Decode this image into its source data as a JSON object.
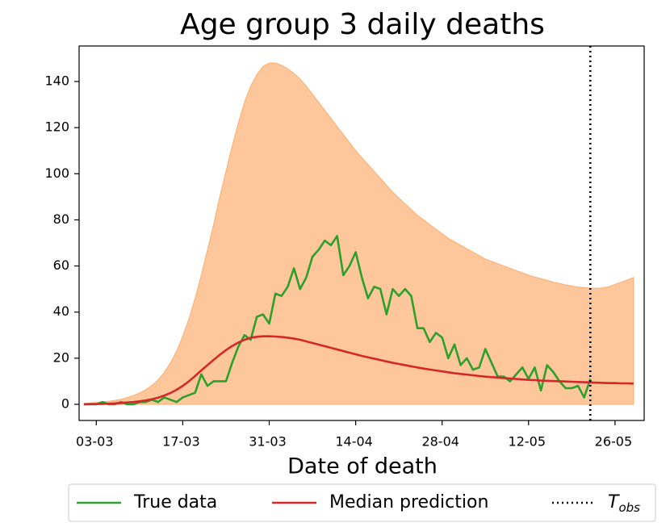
{
  "chart_data": {
    "type": "band-line",
    "title": "Age group 3 daily deaths",
    "xlabel": "Date of death",
    "x": [
      "01-03",
      "02-03",
      "03-03",
      "04-03",
      "05-03",
      "06-03",
      "07-03",
      "08-03",
      "09-03",
      "10-03",
      "11-03",
      "12-03",
      "13-03",
      "14-03",
      "15-03",
      "16-03",
      "17-03",
      "18-03",
      "19-03",
      "20-03",
      "21-03",
      "22-03",
      "23-03",
      "24-03",
      "25-03",
      "26-03",
      "27-03",
      "28-03",
      "29-03",
      "30-03",
      "31-03",
      "01-04",
      "02-04",
      "03-04",
      "04-04",
      "05-04",
      "06-04",
      "07-04",
      "08-04",
      "09-04",
      "10-04",
      "11-04",
      "12-04",
      "13-04",
      "14-04",
      "15-04",
      "16-04",
      "17-04",
      "18-04",
      "19-04",
      "20-04",
      "21-04",
      "22-04",
      "23-04",
      "24-04",
      "25-04",
      "26-04",
      "27-04",
      "28-04",
      "29-04",
      "30-04",
      "01-05",
      "02-05",
      "03-05",
      "04-05",
      "05-05",
      "06-05",
      "07-05",
      "08-05",
      "09-05",
      "10-05",
      "11-05",
      "12-05",
      "13-05",
      "14-05",
      "15-05",
      "16-05",
      "17-05",
      "18-05",
      "19-05",
      "20-05",
      "21-05",
      "22-05",
      "23-05",
      "24-05",
      "25-05",
      "26-05",
      "27-05",
      "28-05",
      "29-05"
    ],
    "xticks": [
      "03-03",
      "17-03",
      "31-03",
      "14-04",
      "28-04",
      "12-05",
      "26-05"
    ],
    "ylim": [
      -7,
      155.4
    ],
    "yticks": [
      0,
      20,
      40,
      60,
      80,
      100,
      120,
      140
    ],
    "band": {
      "color": "#fdc79b",
      "edge": "#fdae6b",
      "upper": [
        0.5,
        0.6,
        0.8,
        1,
        1.3,
        1.7,
        2.2,
        2.9,
        3.8,
        4.9,
        6.3,
        8.2,
        10.6,
        13.8,
        18,
        23,
        29.5,
        37,
        46,
        56,
        67,
        78,
        90,
        101,
        112,
        122,
        131,
        138,
        143,
        146.5,
        148,
        148,
        147,
        145.5,
        143.5,
        141,
        138,
        134.5,
        131,
        127.5,
        124,
        120.5,
        117,
        113.5,
        110,
        107,
        104,
        101,
        98,
        95,
        92,
        89.5,
        87,
        84.5,
        82,
        80,
        78,
        76,
        74,
        72,
        70.5,
        69,
        67.5,
        66,
        64.5,
        63,
        62,
        61,
        60,
        59,
        58,
        57,
        56,
        55.2,
        54.5,
        53.8,
        53,
        52.4,
        51.8,
        51.3,
        50.9,
        50.6,
        50.4,
        50.3,
        50.5,
        51,
        52,
        53,
        54,
        55
      ],
      "lower": [
        0,
        0,
        0,
        0,
        0,
        0,
        0,
        0,
        0,
        0,
        0,
        0,
        0,
        0,
        0,
        0,
        0,
        0,
        0,
        0,
        0,
        0,
        0,
        0,
        0,
        0,
        0,
        0,
        0,
        0,
        0,
        0,
        0,
        0,
        0,
        0,
        0,
        0,
        0,
        0,
        0,
        0,
        0,
        0,
        0,
        0,
        0,
        0,
        0,
        0,
        0,
        0,
        0,
        0,
        0,
        0,
        0,
        0,
        0,
        0,
        0,
        0,
        0,
        0,
        0,
        0,
        0,
        0,
        0,
        0,
        0,
        0,
        0,
        0,
        0,
        0,
        0,
        0,
        0,
        0,
        0,
        0,
        0,
        0,
        0,
        0,
        0,
        0,
        0,
        0
      ]
    },
    "series": [
      {
        "name": "True data",
        "color": "#2ca02c",
        "values": [
          0,
          0,
          0,
          1,
          0,
          0,
          1,
          0,
          0,
          1,
          1,
          2,
          1,
          3,
          2,
          1,
          3,
          4,
          5,
          13,
          8,
          10,
          10,
          10,
          18,
          25,
          30,
          28,
          38,
          39,
          35,
          48,
          47,
          51,
          59,
          50,
          55,
          64,
          67,
          71,
          69,
          73,
          56,
          60,
          66,
          55,
          46,
          51,
          50,
          39,
          50,
          47,
          50,
          47,
          33,
          33,
          27,
          31,
          29,
          20,
          26,
          17,
          20,
          15,
          16,
          24,
          18,
          12,
          12,
          10,
          13,
          16,
          11,
          16,
          6,
          17,
          14,
          10,
          7,
          7,
          8,
          3,
          11,
          null,
          null,
          null,
          null,
          null,
          null,
          null
        ]
      },
      {
        "name": "Median prediction",
        "color": "#d62728",
        "values": [
          0,
          0.1,
          0.1,
          0.2,
          0.3,
          0.4,
          0.6,
          0.8,
          1,
          1.3,
          1.7,
          2.2,
          2.9,
          3.8,
          4.9,
          6.3,
          8,
          10,
          12.3,
          14.7,
          17,
          19.3,
          21.5,
          23.5,
          25.3,
          26.8,
          28,
          28.9,
          29.3,
          29.5,
          29.5,
          29.4,
          29.2,
          28.9,
          28.5,
          28,
          27.3,
          26.6,
          25.9,
          25.2,
          24.5,
          23.8,
          23.1,
          22.4,
          21.7,
          21,
          20.4,
          19.8,
          19.2,
          18.6,
          18,
          17.5,
          17,
          16.5,
          16,
          15.5,
          15.1,
          14.7,
          14.3,
          13.9,
          13.5,
          13.2,
          12.9,
          12.6,
          12.3,
          12,
          11.8,
          11.6,
          11.4,
          11.2,
          11,
          10.8,
          10.6,
          10.5,
          10.3,
          10.2,
          10.1,
          10,
          9.9,
          9.8,
          9.7,
          9.6,
          9.5,
          9.4,
          9.3,
          9.2,
          9.2,
          9.1,
          9.1,
          9
        ]
      }
    ],
    "vline": {
      "x": "22-05",
      "name": "T",
      "subscript": "obs",
      "color": "#000000"
    },
    "legend": "bottom"
  }
}
